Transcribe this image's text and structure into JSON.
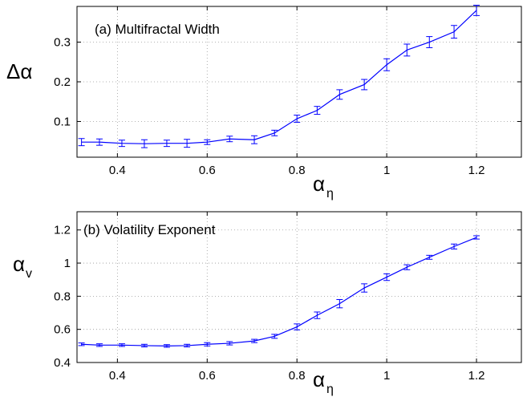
{
  "chart_data": [
    {
      "type": "line",
      "title": "(a) Multifractal Width",
      "xlabel": "α",
      "xlabel_sub": "η",
      "ylabel": "Δα",
      "ylabel_sub": "",
      "xlim": [
        0.31,
        1.3
      ],
      "ylim": [
        0.01,
        0.39
      ],
      "xticks": [
        0.4,
        0.6,
        0.8,
        1,
        1.2
      ],
      "xtick_labels": [
        "0.4",
        "0.6",
        "0.8",
        "1",
        "1.2"
      ],
      "yticks": [
        0.1,
        0.2,
        0.3
      ],
      "ytick_labels": [
        "0.1",
        "0.2",
        "0.3"
      ],
      "grid": true,
      "legend": "none",
      "series": [
        {
          "color": "#0000ff",
          "x": [
            0.32,
            0.36,
            0.41,
            0.46,
            0.51,
            0.555,
            0.6,
            0.65,
            0.705,
            0.75,
            0.8,
            0.845,
            0.895,
            0.95,
            1.0,
            1.045,
            1.095,
            1.15,
            1.2
          ],
          "y": [
            0.048,
            0.048,
            0.045,
            0.044,
            0.045,
            0.045,
            0.048,
            0.056,
            0.054,
            0.071,
            0.107,
            0.128,
            0.168,
            0.193,
            0.243,
            0.28,
            0.3,
            0.326,
            0.38
          ],
          "err": [
            0.009,
            0.008,
            0.008,
            0.01,
            0.008,
            0.01,
            0.006,
            0.007,
            0.01,
            0.007,
            0.009,
            0.01,
            0.012,
            0.013,
            0.015,
            0.015,
            0.014,
            0.016,
            0.013
          ]
        }
      ]
    },
    {
      "type": "line",
      "title": "(b) Volatility Exponent",
      "xlabel": "α",
      "xlabel_sub": "η",
      "ylabel": "α",
      "ylabel_sub": "v",
      "xlim": [
        0.31,
        1.3
      ],
      "ylim": [
        0.4,
        1.31
      ],
      "xticks": [
        0.4,
        0.6,
        0.8,
        1,
        1.2
      ],
      "xtick_labels": [
        "0.4",
        "0.6",
        "0.8",
        "1",
        "1.2"
      ],
      "yticks": [
        0.4,
        0.6,
        0.8,
        1,
        1.2
      ],
      "ytick_labels": [
        "0.4",
        "0.6",
        "0.8",
        "1",
        "1.2"
      ],
      "grid": true,
      "legend": "none",
      "series": [
        {
          "color": "#0000ff",
          "x": [
            0.32,
            0.36,
            0.41,
            0.46,
            0.51,
            0.555,
            0.6,
            0.65,
            0.705,
            0.75,
            0.8,
            0.845,
            0.895,
            0.95,
            1.0,
            1.045,
            1.095,
            1.15,
            1.2
          ],
          "y": [
            0.51,
            0.505,
            0.505,
            0.502,
            0.5,
            0.502,
            0.51,
            0.516,
            0.53,
            0.558,
            0.615,
            0.685,
            0.755,
            0.85,
            0.915,
            0.975,
            1.035,
            1.1,
            1.155
          ],
          "err": [
            0.008,
            0.008,
            0.008,
            0.008,
            0.008,
            0.008,
            0.01,
            0.01,
            0.01,
            0.012,
            0.018,
            0.02,
            0.025,
            0.025,
            0.02,
            0.015,
            0.012,
            0.015,
            0.01
          ]
        }
      ]
    }
  ]
}
